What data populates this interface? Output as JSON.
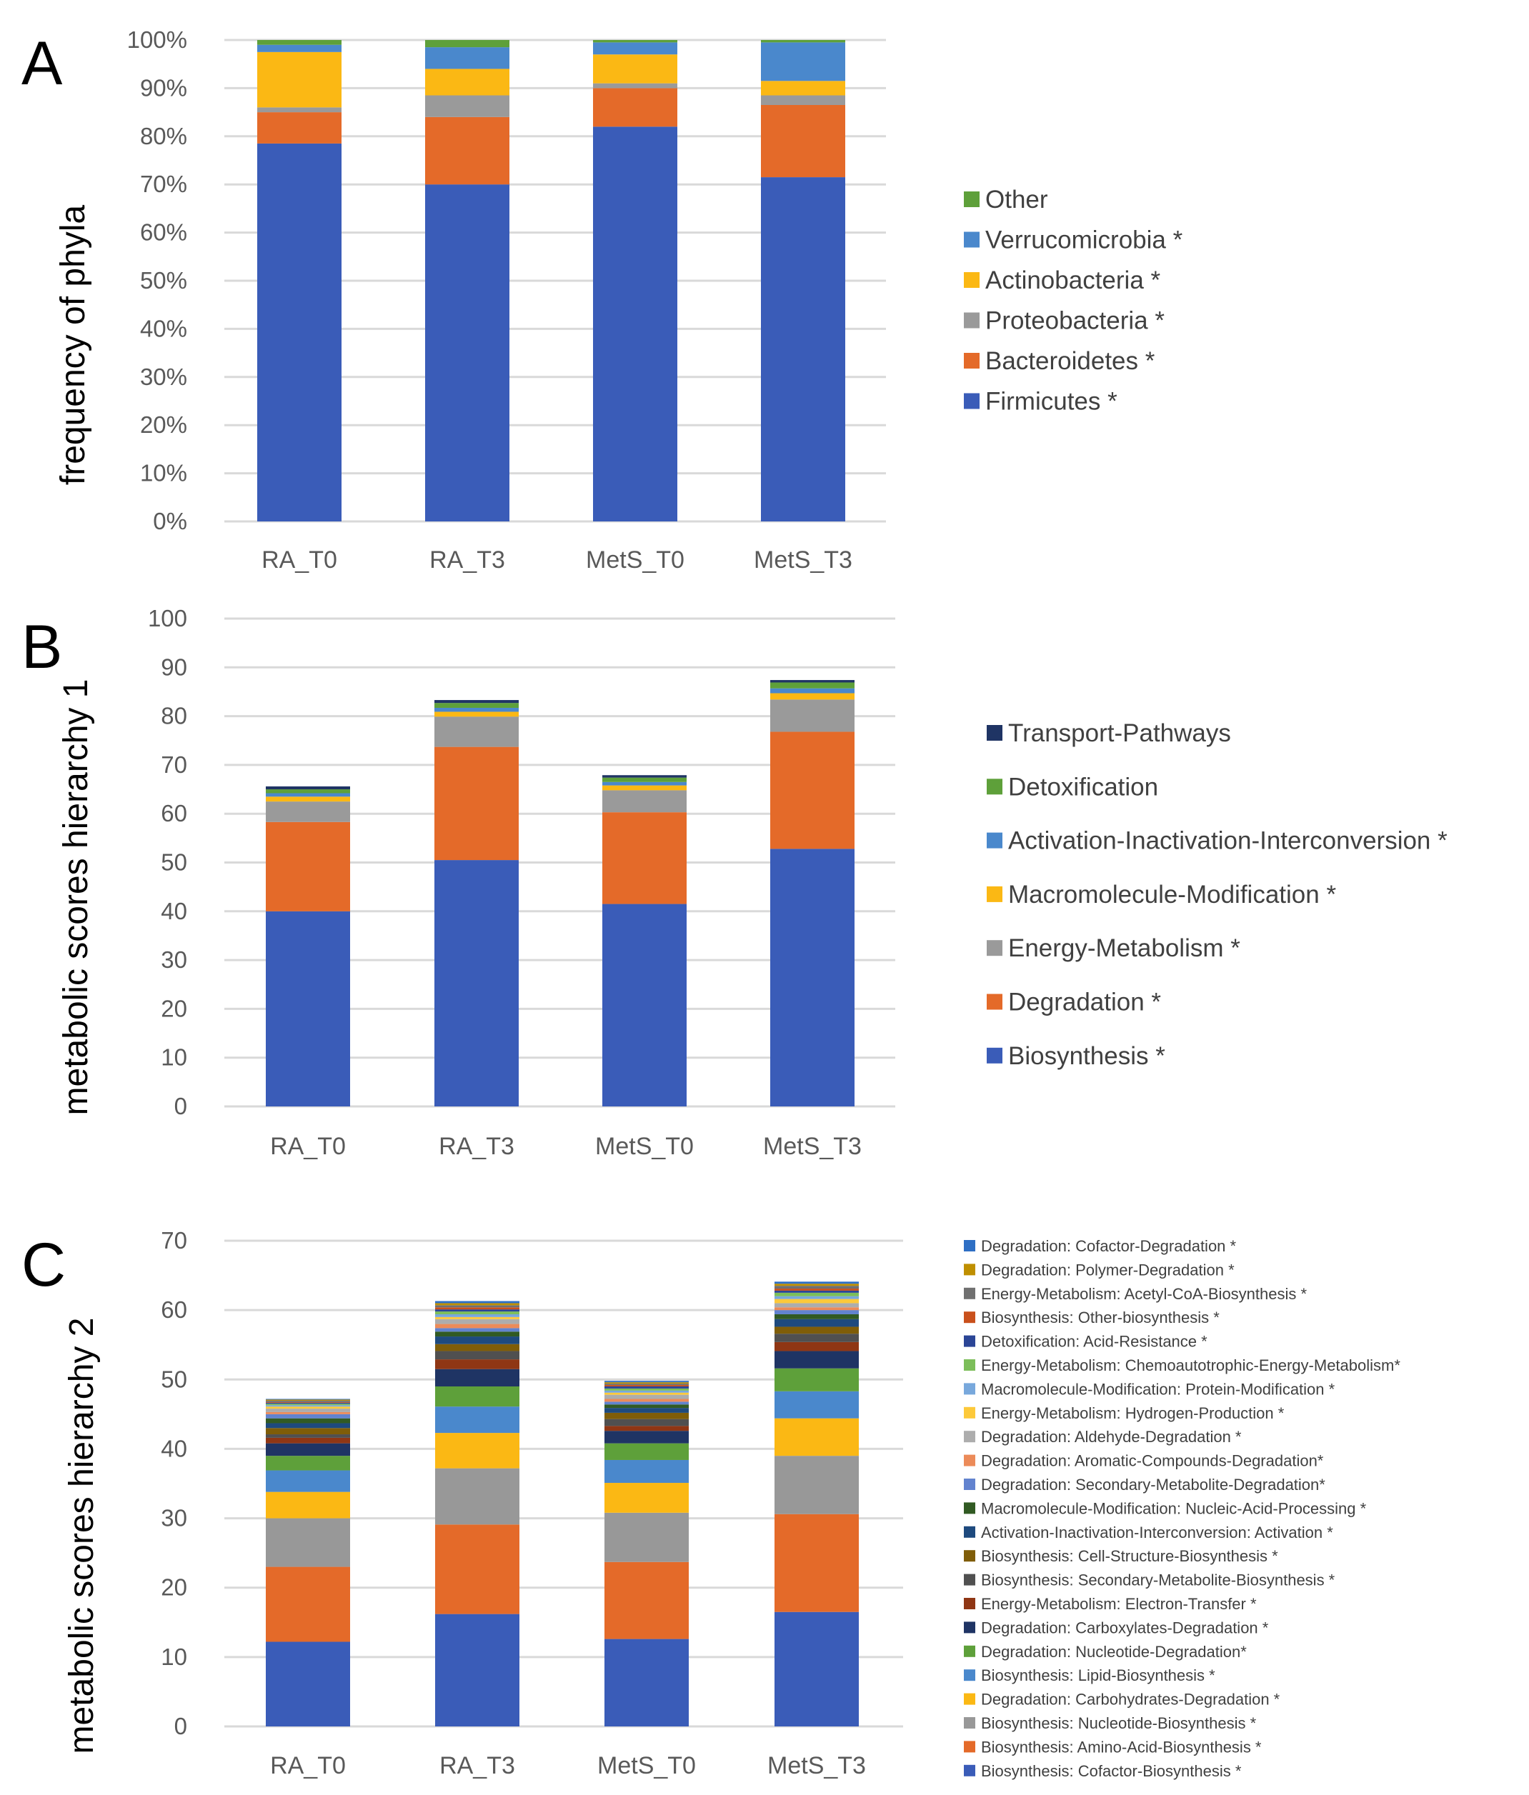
{
  "chart_data": [
    {
      "panel": "A",
      "type": "bar",
      "stacked": true,
      "ylabel": "frequency of phyla",
      "ylim": [
        0,
        100
      ],
      "yticks": [
        "0%",
        "10%",
        "20%",
        "30%",
        "40%",
        "50%",
        "60%",
        "70%",
        "80%",
        "90%",
        "100%"
      ],
      "grid": true,
      "legend": "right",
      "categories": [
        "RA_T0",
        "RA_T3",
        "MetS_T0",
        "MetS_T3"
      ],
      "series": [
        {
          "name": "Firmicutes *",
          "color": "#3a5cb8",
          "values": [
            78.5,
            70,
            82,
            71.5
          ]
        },
        {
          "name": "Bacteroidetes *",
          "color": "#e46a29",
          "values": [
            6.5,
            14,
            8,
            15
          ]
        },
        {
          "name": "Proteobacteria *",
          "color": "#9a9a9a",
          "values": [
            1,
            4.5,
            1,
            2
          ]
        },
        {
          "name": "Actinobacteria *",
          "color": "#fbb814",
          "values": [
            11.5,
            5.5,
            6,
            3
          ]
        },
        {
          "name": "Verrucomicrobia *",
          "color": "#4a88cc",
          "values": [
            1.5,
            4.5,
            2.5,
            8
          ]
        },
        {
          "name": "Other",
          "color": "#5ea03a",
          "values": [
            1,
            1.5,
            0.5,
            0.5
          ]
        }
      ]
    },
    {
      "panel": "B",
      "type": "bar",
      "stacked": true,
      "ylabel": "metabolic scores hierarchy 1",
      "ylim": [
        0,
        100
      ],
      "yticks": [
        "0",
        "10",
        "20",
        "30",
        "40",
        "50",
        "60",
        "70",
        "80",
        "90",
        "100"
      ],
      "grid": true,
      "legend": "right",
      "categories": [
        "RA_T0",
        "RA_T3",
        "MetS_T0",
        "MetS_T3"
      ],
      "series": [
        {
          "name": "Biosynthesis *",
          "color": "#3a5cb8",
          "values": [
            40,
            50.5,
            41.5,
            52.8
          ]
        },
        {
          "name": "Degradation *",
          "color": "#e46a29",
          "values": [
            18.3,
            23.2,
            18.8,
            24
          ]
        },
        {
          "name": "Energy-Metabolism *",
          "color": "#9a9a9a",
          "values": [
            4.2,
            6.2,
            4.5,
            6.6
          ]
        },
        {
          "name": "Macromolecule-Modification *",
          "color": "#fbb814",
          "values": [
            1,
            1,
            1,
            1.3
          ]
        },
        {
          "name": "Activation-Inactivation-Interconversion *",
          "color": "#4a88cc",
          "values": [
            0.7,
            0.8,
            0.7,
            1
          ]
        },
        {
          "name": "Detoxification",
          "color": "#5ea03a",
          "values": [
            0.8,
            1,
            0.9,
            1.2
          ]
        },
        {
          "name": "Transport-Pathways",
          "color": "#1f3464",
          "values": [
            0.6,
            0.6,
            0.5,
            0.5
          ]
        }
      ]
    },
    {
      "panel": "C",
      "type": "bar",
      "stacked": true,
      "ylabel": "metabolic scores hierarchy 2",
      "ylim": [
        0,
        70
      ],
      "yticks": [
        "0",
        "10",
        "20",
        "30",
        "40",
        "50",
        "60",
        "70"
      ],
      "grid": true,
      "legend": "right",
      "categories": [
        "RA_T0",
        "RA_T3",
        "MetS_T0",
        "MetS_T3"
      ],
      "series": [
        {
          "name": "Biosynthesis: Cofactor-Biosynthesis *",
          "color": "#3a5cb8",
          "values": [
            12.2,
            16.2,
            12.6,
            16.5
          ]
        },
        {
          "name": "Biosynthesis: Amino-Acid-Biosynthesis *",
          "color": "#e46a29",
          "values": [
            10.8,
            12.9,
            11.1,
            14.1
          ]
        },
        {
          "name": "Biosynthesis: Nucleotide-Biosynthesis *",
          "color": "#989898",
          "values": [
            7.0,
            8.1,
            7.1,
            8.4
          ]
        },
        {
          "name": "Degradation: Carbohydrates-Degradation *",
          "color": "#fbb814",
          "values": [
            3.8,
            5.1,
            4.3,
            5.4
          ]
        },
        {
          "name": "Biosynthesis: Lipid-Biosynthesis *",
          "color": "#4a88cc",
          "values": [
            3.1,
            3.8,
            3.3,
            3.9
          ]
        },
        {
          "name": "Degradation: Nucleotide-Degradation*",
          "color": "#5ea03a",
          "values": [
            2.1,
            2.9,
            2.4,
            3.3
          ]
        },
        {
          "name": "Degradation: Carboxylates-Degradation *",
          "color": "#1f3464",
          "values": [
            1.8,
            2.5,
            1.8,
            2.5
          ]
        },
        {
          "name": "Energy-Metabolism: Electron-Transfer *",
          "color": "#8f3614",
          "values": [
            0.8,
            1.4,
            0.7,
            1.3
          ]
        },
        {
          "name": "Biosynthesis: Secondary-Metabolite-Biosynthesis *",
          "color": "#505050",
          "values": [
            0.5,
            1.2,
            1.0,
            1.2
          ]
        },
        {
          "name": "Biosynthesis: Cell-Structure-Biosynthesis *",
          "color": "#7f5d08",
          "values": [
            0.9,
            1.0,
            0.9,
            1.0
          ]
        },
        {
          "name": "Activation-Inactivation-Interconversion: Activation *",
          "color": "#1e4a7e",
          "values": [
            0.7,
            1.1,
            0.7,
            1.1
          ]
        },
        {
          "name": "Macromolecule-Modification: Nucleic-Acid-Processing *",
          "color": "#315a23",
          "values": [
            0.7,
            0.7,
            0.5,
            0.7
          ]
        },
        {
          "name": "Degradation: Secondary-Metabolite-Degradation*",
          "color": "#6283cf",
          "values": [
            0.6,
            0.5,
            0.4,
            0.6
          ]
        },
        {
          "name": "Degradation: Aromatic-Compounds-Degradation*",
          "color": "#ec8b59",
          "values": [
            0.3,
            0.6,
            0.4,
            0.4
          ]
        },
        {
          "name": "Degradation: Aldehyde-Degradation *",
          "color": "#adadad",
          "values": [
            0.5,
            0.7,
            0.6,
            0.6
          ]
        },
        {
          "name": "Energy-Metabolism: Hydrogen-Production *",
          "color": "#fdc93a",
          "values": [
            0.3,
            0.3,
            0.3,
            0.6
          ]
        },
        {
          "name": "Macromolecule-Modification: Protein-Modification *",
          "color": "#78a8dc",
          "values": [
            0.2,
            0.4,
            0.3,
            0.4
          ]
        },
        {
          "name": "Energy-Metabolism: Chemoautotrophic-Energy-Metabolism*",
          "color": "#7cbe5a",
          "values": [
            0.2,
            0.4,
            0.3,
            0.5
          ]
        },
        {
          "name": "Detoxification: Acid-Resistance *",
          "color": "#2b4596",
          "values": [
            0.15,
            0.3,
            0.3,
            0.3
          ]
        },
        {
          "name": "Biosynthesis: Other-biosynthesis *",
          "color": "#c9501c",
          "values": [
            0.1,
            0.3,
            0.2,
            0.3
          ]
        },
        {
          "name": "Energy-Metabolism: Acetyl-CoA-Biosynthesis *",
          "color": "#707070",
          "values": [
            0.2,
            0.3,
            0.2,
            0.4
          ]
        },
        {
          "name": "Degradation: Polymer-Degradation *",
          "color": "#bf8f00",
          "values": [
            0.15,
            0.3,
            0.2,
            0.3
          ]
        },
        {
          "name": "Degradation: Cofactor-Degradation *",
          "color": "#2e6fc4",
          "values": [
            0.1,
            0.3,
            0.2,
            0.3
          ]
        }
      ]
    }
  ]
}
